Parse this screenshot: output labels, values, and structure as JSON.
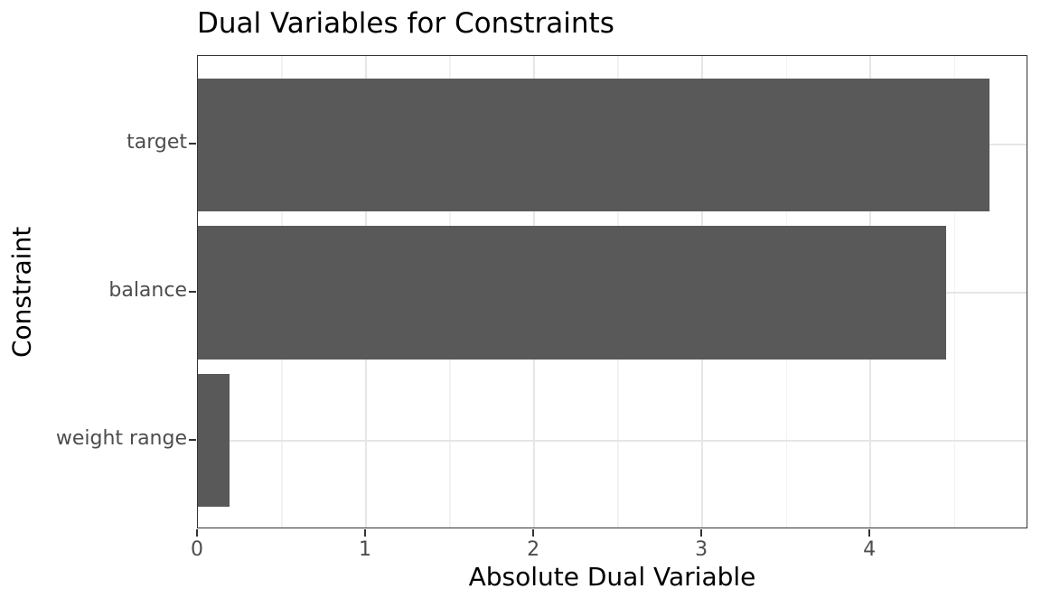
{
  "chart_data": {
    "type": "bar",
    "orientation": "horizontal",
    "title": "Dual Variables for Constraints",
    "xlabel": "Absolute Dual Variable",
    "ylabel": "Constraint",
    "categories": [
      "target",
      "balance",
      "weight range"
    ],
    "values": [
      4.71,
      4.45,
      0.19
    ],
    "xlim": [
      0,
      4.94
    ],
    "x_major_ticks": [
      0,
      1,
      2,
      3,
      4
    ],
    "x_tick_labels": [
      "0",
      "1",
      "2",
      "3",
      "4"
    ],
    "x_minor_gridlines": [
      0.5,
      1.5,
      2.5,
      3.5,
      4.5
    ],
    "grid": true,
    "legend": false,
    "bar_width_fraction": 0.9,
    "colors": {
      "bar": "#595959",
      "grid_major": "#e6e6e6",
      "grid_minor": "#f2f2f2",
      "panel_border": "#333333",
      "tick_mark": "#333333",
      "tick_label": "#4d4d4d",
      "text": "#000000",
      "background": "#ffffff"
    }
  }
}
